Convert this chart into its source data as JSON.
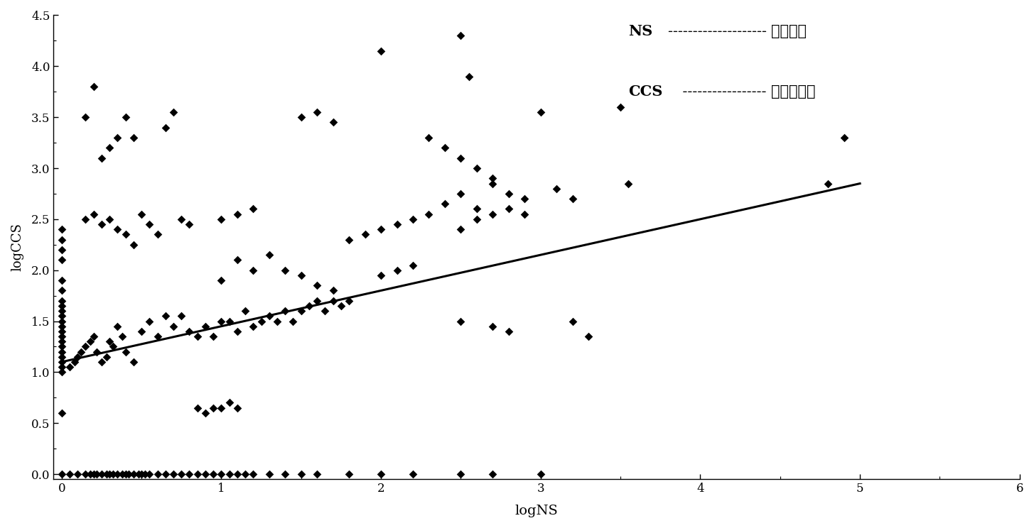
{
  "title": "",
  "xlabel": "logNS",
  "ylabel": "logCCS",
  "xlim": [
    -0.05,
    6
  ],
  "ylim": [
    -0.05,
    4.5
  ],
  "xticks": [
    0,
    1,
    2,
    3,
    4,
    5,
    6
  ],
  "yticks": [
    0,
    0.5,
    1,
    1.5,
    2,
    2.5,
    3,
    3.5,
    4,
    4.5
  ],
  "scatter_color": "#000000",
  "line_color": "#000000",
  "line_x": [
    0.0,
    5.0
  ],
  "line_y": [
    1.1,
    2.85
  ],
  "legend_ns_left": "NS",
  "legend_ns_right": "正常血清",
  "legend_ccs_left": "CCS",
  "legend_ccs_right": "结肠癌血清",
  "scatter_points": [
    [
      0.0,
      2.4
    ],
    [
      0.0,
      2.3
    ],
    [
      0.0,
      2.2
    ],
    [
      0.0,
      2.1
    ],
    [
      0.0,
      1.9
    ],
    [
      0.0,
      1.8
    ],
    [
      0.0,
      1.7
    ],
    [
      0.0,
      1.65
    ],
    [
      0.0,
      1.6
    ],
    [
      0.0,
      1.55
    ],
    [
      0.0,
      1.5
    ],
    [
      0.0,
      1.45
    ],
    [
      0.0,
      1.4
    ],
    [
      0.0,
      1.35
    ],
    [
      0.0,
      1.3
    ],
    [
      0.0,
      1.25
    ],
    [
      0.0,
      1.2
    ],
    [
      0.0,
      1.15
    ],
    [
      0.0,
      1.1
    ],
    [
      0.0,
      1.05
    ],
    [
      0.0,
      1.0
    ],
    [
      0.0,
      0.6
    ],
    [
      0.0,
      0.0
    ],
    [
      0.05,
      0.0
    ],
    [
      0.1,
      0.0
    ],
    [
      0.15,
      0.0
    ],
    [
      0.18,
      0.0
    ],
    [
      0.2,
      0.0
    ],
    [
      0.22,
      0.0
    ],
    [
      0.25,
      0.0
    ],
    [
      0.28,
      0.0
    ],
    [
      0.3,
      0.0
    ],
    [
      0.32,
      0.0
    ],
    [
      0.35,
      0.0
    ],
    [
      0.38,
      0.0
    ],
    [
      0.4,
      0.0
    ],
    [
      0.42,
      0.0
    ],
    [
      0.45,
      0.0
    ],
    [
      0.48,
      0.0
    ],
    [
      0.5,
      0.0
    ],
    [
      0.52,
      0.0
    ],
    [
      0.55,
      0.0
    ],
    [
      0.6,
      0.0
    ],
    [
      0.65,
      0.0
    ],
    [
      0.7,
      0.0
    ],
    [
      0.75,
      0.0
    ],
    [
      0.8,
      0.0
    ],
    [
      0.85,
      0.0
    ],
    [
      0.9,
      0.0
    ],
    [
      0.95,
      0.0
    ],
    [
      1.0,
      0.0
    ],
    [
      1.05,
      0.0
    ],
    [
      1.1,
      0.0
    ],
    [
      1.15,
      0.0
    ],
    [
      1.2,
      0.0
    ],
    [
      1.3,
      0.0
    ],
    [
      1.4,
      0.0
    ],
    [
      1.5,
      0.0
    ],
    [
      1.6,
      0.0
    ],
    [
      1.8,
      0.0
    ],
    [
      2.0,
      0.0
    ],
    [
      2.2,
      0.0
    ],
    [
      2.5,
      0.0
    ],
    [
      2.7,
      0.0
    ],
    [
      3.0,
      0.0
    ],
    [
      0.05,
      1.05
    ],
    [
      0.08,
      1.1
    ],
    [
      0.1,
      1.15
    ],
    [
      0.12,
      1.2
    ],
    [
      0.15,
      1.25
    ],
    [
      0.18,
      1.3
    ],
    [
      0.2,
      1.35
    ],
    [
      0.22,
      1.2
    ],
    [
      0.25,
      1.1
    ],
    [
      0.28,
      1.15
    ],
    [
      0.3,
      1.3
    ],
    [
      0.32,
      1.25
    ],
    [
      0.35,
      1.45
    ],
    [
      0.38,
      1.35
    ],
    [
      0.4,
      1.2
    ],
    [
      0.45,
      1.1
    ],
    [
      0.5,
      1.4
    ],
    [
      0.55,
      1.5
    ],
    [
      0.6,
      1.35
    ],
    [
      0.65,
      1.55
    ],
    [
      0.7,
      1.45
    ],
    [
      0.75,
      1.55
    ],
    [
      0.8,
      1.4
    ],
    [
      0.85,
      1.35
    ],
    [
      0.9,
      1.45
    ],
    [
      0.95,
      1.35
    ],
    [
      1.0,
      1.5
    ],
    [
      1.05,
      1.5
    ],
    [
      1.1,
      1.4
    ],
    [
      1.15,
      1.6
    ],
    [
      1.2,
      1.45
    ],
    [
      1.25,
      1.5
    ],
    [
      1.3,
      1.55
    ],
    [
      1.35,
      1.5
    ],
    [
      1.4,
      1.6
    ],
    [
      1.45,
      1.5
    ],
    [
      1.5,
      1.6
    ],
    [
      1.55,
      1.65
    ],
    [
      1.6,
      1.7
    ],
    [
      1.65,
      1.6
    ],
    [
      1.7,
      1.7
    ],
    [
      1.75,
      1.65
    ],
    [
      1.8,
      1.7
    ],
    [
      0.15,
      2.5
    ],
    [
      0.2,
      2.55
    ],
    [
      0.25,
      2.45
    ],
    [
      0.3,
      2.5
    ],
    [
      0.35,
      2.4
    ],
    [
      0.4,
      2.35
    ],
    [
      0.45,
      2.25
    ],
    [
      0.15,
      3.5
    ],
    [
      0.2,
      3.8
    ],
    [
      0.25,
      3.1
    ],
    [
      0.3,
      3.2
    ],
    [
      0.35,
      3.3
    ],
    [
      0.4,
      3.5
    ],
    [
      0.45,
      3.3
    ],
    [
      0.5,
      2.55
    ],
    [
      0.55,
      2.45
    ],
    [
      0.6,
      2.35
    ],
    [
      0.65,
      3.4
    ],
    [
      0.7,
      3.55
    ],
    [
      0.75,
      2.5
    ],
    [
      0.8,
      2.45
    ],
    [
      0.85,
      0.65
    ],
    [
      0.9,
      0.6
    ],
    [
      0.95,
      0.65
    ],
    [
      1.0,
      0.65
    ],
    [
      1.05,
      0.7
    ],
    [
      1.1,
      0.65
    ],
    [
      1.5,
      3.5
    ],
    [
      1.6,
      3.55
    ],
    [
      1.7,
      3.45
    ],
    [
      1.0,
      1.9
    ],
    [
      1.1,
      2.1
    ],
    [
      1.2,
      2.0
    ],
    [
      1.3,
      2.15
    ],
    [
      1.4,
      2.0
    ],
    [
      1.5,
      1.95
    ],
    [
      1.6,
      1.85
    ],
    [
      1.7,
      1.8
    ],
    [
      1.8,
      2.3
    ],
    [
      1.9,
      2.35
    ],
    [
      2.0,
      2.4
    ],
    [
      2.1,
      2.45
    ],
    [
      2.2,
      2.5
    ],
    [
      2.0,
      1.95
    ],
    [
      2.1,
      2.0
    ],
    [
      2.2,
      2.05
    ],
    [
      2.3,
      2.55
    ],
    [
      2.4,
      2.65
    ],
    [
      2.5,
      2.75
    ],
    [
      2.6,
      2.6
    ],
    [
      2.7,
      2.85
    ],
    [
      2.8,
      2.75
    ],
    [
      2.9,
      2.7
    ],
    [
      2.0,
      4.15
    ],
    [
      2.5,
      4.3
    ],
    [
      2.55,
      3.9
    ],
    [
      2.3,
      3.3
    ],
    [
      2.4,
      3.2
    ],
    [
      2.5,
      3.1
    ],
    [
      2.6,
      3.0
    ],
    [
      2.7,
      2.9
    ],
    [
      3.0,
      3.55
    ],
    [
      3.1,
      2.8
    ],
    [
      3.2,
      2.7
    ],
    [
      3.5,
      3.6
    ],
    [
      3.55,
      2.85
    ],
    [
      2.5,
      1.5
    ],
    [
      2.7,
      1.45
    ],
    [
      2.8,
      1.4
    ],
    [
      3.2,
      1.5
    ],
    [
      3.3,
      1.35
    ],
    [
      4.8,
      2.85
    ],
    [
      4.9,
      3.3
    ],
    [
      1.0,
      2.5
    ],
    [
      1.1,
      2.55
    ],
    [
      1.2,
      2.6
    ],
    [
      2.5,
      2.4
    ],
    [
      2.6,
      2.5
    ],
    [
      2.7,
      2.55
    ],
    [
      2.8,
      2.6
    ],
    [
      2.9,
      2.55
    ]
  ]
}
